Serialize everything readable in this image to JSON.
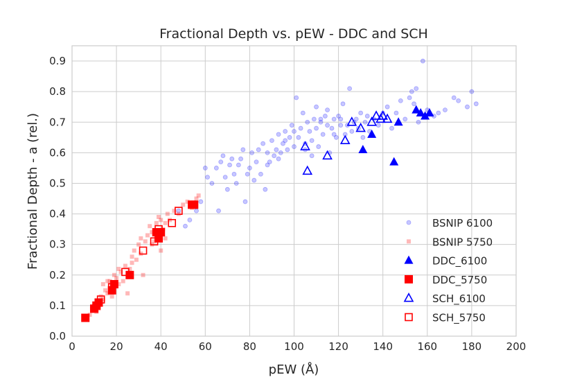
{
  "chart_data": {
    "type": "scatter",
    "title": "Fractional Depth vs. pEW - DDC and SCH",
    "xlabel": "pEW (Å)",
    "ylabel": "Fractional Depth - a (rel.)",
    "xlim": [
      0,
      200
    ],
    "ylim": [
      0,
      0.95
    ],
    "xticks": [
      0,
      20,
      40,
      60,
      80,
      100,
      120,
      140,
      160,
      180,
      200
    ],
    "yticks": [
      0.0,
      0.1,
      0.2,
      0.3,
      0.4,
      0.5,
      0.6,
      0.7,
      0.8,
      0.9
    ],
    "x_tick_labels": [
      "0",
      "20",
      "40",
      "60",
      "80",
      "100",
      "120",
      "140",
      "160",
      "180",
      "200"
    ],
    "y_tick_labels": [
      "0.0",
      "0.1",
      "0.2",
      "0.3",
      "0.4",
      "0.5",
      "0.6",
      "0.7",
      "0.8",
      "0.9"
    ],
    "grid": true,
    "legend_position": "lower-right",
    "colors": {
      "blue": "#0000ff",
      "red": "#ff0000",
      "grid": "#cccccc",
      "axes": "#cccccc"
    },
    "series": [
      {
        "name": "BSNIP 6100",
        "marker": "circle-small-alpha",
        "color": "#0000ff",
        "points": [
          [
            48,
            0.41
          ],
          [
            51,
            0.36
          ],
          [
            53,
            0.38
          ],
          [
            56,
            0.41
          ],
          [
            58,
            0.44
          ],
          [
            60,
            0.55
          ],
          [
            61,
            0.52
          ],
          [
            63,
            0.5
          ],
          [
            65,
            0.55
          ],
          [
            66,
            0.41
          ],
          [
            67,
            0.57
          ],
          [
            68,
            0.59
          ],
          [
            69,
            0.52
          ],
          [
            70,
            0.48
          ],
          [
            71,
            0.56
          ],
          [
            72,
            0.58
          ],
          [
            73,
            0.53
          ],
          [
            74,
            0.5
          ],
          [
            75,
            0.56
          ],
          [
            76,
            0.58
          ],
          [
            77,
            0.61
          ],
          [
            78,
            0.44
          ],
          [
            79,
            0.53
          ],
          [
            80,
            0.55
          ],
          [
            81,
            0.6
          ],
          [
            82,
            0.51
          ],
          [
            83,
            0.57
          ],
          [
            84,
            0.61
          ],
          [
            85,
            0.53
          ],
          [
            86,
            0.63
          ],
          [
            87,
            0.48
          ],
          [
            88,
            0.6
          ],
          [
            89,
            0.57
          ],
          [
            90,
            0.64
          ],
          [
            91,
            0.59
          ],
          [
            92,
            0.61
          ],
          [
            93,
            0.66
          ],
          [
            94,
            0.6
          ],
          [
            95,
            0.63
          ],
          [
            96,
            0.67
          ],
          [
            97,
            0.61
          ],
          [
            98,
            0.65
          ],
          [
            99,
            0.69
          ],
          [
            100,
            0.62
          ],
          [
            101,
            0.78
          ],
          [
            102,
            0.65
          ],
          [
            103,
            0.68
          ],
          [
            104,
            0.73
          ],
          [
            105,
            0.63
          ],
          [
            106,
            0.7
          ],
          [
            107,
            0.67
          ],
          [
            108,
            0.64
          ],
          [
            109,
            0.71
          ],
          [
            110,
            0.75
          ],
          [
            110,
            0.68
          ],
          [
            111,
            0.62
          ],
          [
            112,
            0.7
          ],
          [
            113,
            0.66
          ],
          [
            114,
            0.72
          ],
          [
            115,
            0.69
          ],
          [
            116,
            0.6
          ],
          [
            117,
            0.68
          ],
          [
            118,
            0.71
          ],
          [
            119,
            0.65
          ],
          [
            120,
            0.72
          ],
          [
            121,
            0.69
          ],
          [
            122,
            0.76
          ],
          [
            123,
            0.66
          ],
          [
            124,
            0.69
          ],
          [
            125,
            0.81
          ],
          [
            126,
            0.67
          ],
          [
            127,
            0.7
          ],
          [
            128,
            0.71
          ],
          [
            129,
            0.68
          ],
          [
            130,
            0.73
          ],
          [
            131,
            0.65
          ],
          [
            132,
            0.7
          ],
          [
            133,
            0.72
          ],
          [
            134,
            0.67
          ],
          [
            136,
            0.71
          ],
          [
            138,
            0.69
          ],
          [
            140,
            0.73
          ],
          [
            142,
            0.75
          ],
          [
            144,
            0.68
          ],
          [
            146,
            0.73
          ],
          [
            148,
            0.77
          ],
          [
            150,
            0.71
          ],
          [
            152,
            0.78
          ],
          [
            153,
            0.8
          ],
          [
            154,
            0.76
          ],
          [
            155,
            0.81
          ],
          [
            156,
            0.7
          ],
          [
            158,
            0.9
          ],
          [
            160,
            0.74
          ],
          [
            163,
            0.72
          ],
          [
            165,
            0.73
          ],
          [
            168,
            0.74
          ],
          [
            172,
            0.78
          ],
          [
            174,
            0.77
          ],
          [
            178,
            0.75
          ],
          [
            180,
            0.8
          ],
          [
            182,
            0.76
          ],
          [
            100,
            0.67
          ],
          [
            105,
            0.61
          ],
          [
            115,
            0.74
          ],
          [
            118,
            0.66
          ],
          [
            121,
            0.71
          ],
          [
            108,
            0.59
          ],
          [
            112,
            0.71
          ],
          [
            96,
            0.64
          ],
          [
            88,
            0.56
          ],
          [
            93,
            0.58
          ]
        ]
      },
      {
        "name": "BSNIP 5750",
        "marker": "square-small-alpha",
        "color": "#ff0000",
        "points": [
          [
            8,
            0.07
          ],
          [
            9,
            0.09
          ],
          [
            10,
            0.1
          ],
          [
            11,
            0.08
          ],
          [
            12,
            0.11
          ],
          [
            13,
            0.13
          ],
          [
            14,
            0.12
          ],
          [
            15,
            0.15
          ],
          [
            16,
            0.14
          ],
          [
            17,
            0.18
          ],
          [
            18,
            0.16
          ],
          [
            19,
            0.2
          ],
          [
            20,
            0.19
          ],
          [
            21,
            0.22
          ],
          [
            22,
            0.21
          ],
          [
            23,
            0.18
          ],
          [
            24,
            0.23
          ],
          [
            25,
            0.14
          ],
          [
            26,
            0.22
          ],
          [
            27,
            0.26
          ],
          [
            28,
            0.28
          ],
          [
            29,
            0.25
          ],
          [
            30,
            0.3
          ],
          [
            31,
            0.32
          ],
          [
            32,
            0.2
          ],
          [
            33,
            0.31
          ],
          [
            34,
            0.33
          ],
          [
            35,
            0.36
          ],
          [
            36,
            0.34
          ],
          [
            37,
            0.31
          ],
          [
            38,
            0.37
          ],
          [
            39,
            0.39
          ],
          [
            40,
            0.38
          ],
          [
            41,
            0.35
          ],
          [
            42,
            0.32
          ],
          [
            43,
            0.4
          ],
          [
            44,
            0.38
          ],
          [
            46,
            0.41
          ],
          [
            48,
            0.4
          ],
          [
            50,
            0.43
          ],
          [
            52,
            0.44
          ],
          [
            54,
            0.42
          ],
          [
            56,
            0.45
          ],
          [
            57,
            0.46
          ],
          [
            14,
            0.17
          ],
          [
            18,
            0.13
          ],
          [
            21,
            0.17
          ],
          [
            27,
            0.24
          ],
          [
            31,
            0.27
          ],
          [
            36,
            0.3
          ],
          [
            40,
            0.28
          ],
          [
            42,
            0.37
          ],
          [
            12,
            0.09
          ],
          [
            16,
            0.18
          ]
        ]
      },
      {
        "name": "DDC_6100",
        "marker": "triangle-filled",
        "color": "#0000ff",
        "points": [
          [
            131,
            0.61
          ],
          [
            135,
            0.66
          ],
          [
            145,
            0.57
          ],
          [
            147,
            0.7
          ],
          [
            155,
            0.74
          ],
          [
            157,
            0.73
          ],
          [
            159,
            0.72
          ],
          [
            161,
            0.73
          ]
        ]
      },
      {
        "name": "DDC_5750",
        "marker": "square-filled",
        "color": "#ff0000",
        "points": [
          [
            6,
            0.06
          ],
          [
            10,
            0.09
          ],
          [
            11,
            0.1
          ],
          [
            12,
            0.11
          ],
          [
            18,
            0.15
          ],
          [
            19,
            0.17
          ],
          [
            26,
            0.2
          ],
          [
            38,
            0.34
          ],
          [
            39,
            0.32
          ],
          [
            40,
            0.34
          ],
          [
            54,
            0.43
          ],
          [
            55,
            0.43
          ]
        ]
      },
      {
        "name": "SCH_6100",
        "marker": "triangle-open",
        "color": "#0000ff",
        "points": [
          [
            105,
            0.62
          ],
          [
            106,
            0.54
          ],
          [
            115,
            0.59
          ],
          [
            123,
            0.64
          ],
          [
            126,
            0.7
          ],
          [
            130,
            0.68
          ],
          [
            135,
            0.7
          ],
          [
            137,
            0.72
          ],
          [
            139,
            0.71
          ],
          [
            140,
            0.72
          ],
          [
            142,
            0.71
          ]
        ]
      },
      {
        "name": "SCH_5750",
        "marker": "square-open",
        "color": "#ff0000",
        "points": [
          [
            10,
            0.09
          ],
          [
            13,
            0.12
          ],
          [
            18,
            0.16
          ],
          [
            24,
            0.21
          ],
          [
            32,
            0.28
          ],
          [
            37,
            0.31
          ],
          [
            39,
            0.35
          ],
          [
            45,
            0.37
          ],
          [
            48,
            0.41
          ]
        ]
      }
    ],
    "legend": [
      "BSNIP 6100",
      "BSNIP 5750",
      "DDC_6100",
      "DDC_5750",
      "SCH_6100",
      "SCH_5750"
    ]
  }
}
